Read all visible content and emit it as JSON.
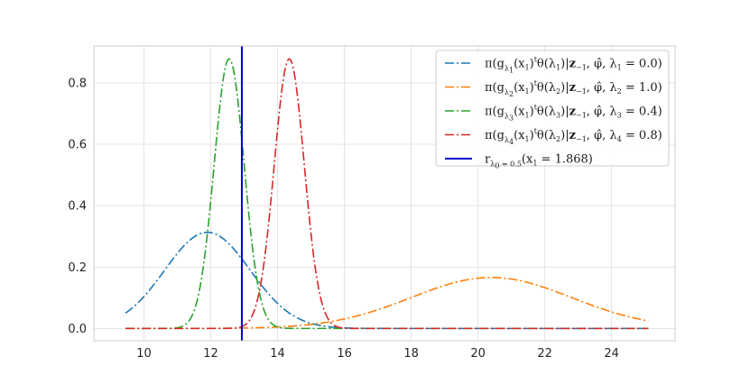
{
  "chart_data": {
    "type": "line",
    "title": "",
    "xlabel": "",
    "ylabel": "",
    "xlim": [
      8.5,
      25.9
    ],
    "ylim": [
      -0.04,
      0.92
    ],
    "x_ticks": [
      10,
      12,
      14,
      16,
      18,
      20,
      22,
      24
    ],
    "y_ticks": [
      0.0,
      0.2,
      0.4,
      0.6,
      0.8
    ],
    "x_tick_labels": [
      "10",
      "12",
      "14",
      "16",
      "18",
      "20",
      "22",
      "24"
    ],
    "y_tick_labels": [
      "0.0",
      "0.2",
      "0.4",
      "0.6",
      "0.8"
    ],
    "x_range": [
      9.45,
      25.1
    ],
    "grid": true,
    "legend_position": "top-right",
    "series": [
      {
        "name": "π(gλ1(x1)tθ(λ1)|z−1, φ̂, λ1 = 0.0)",
        "color": "#1f77b4",
        "style": "dashdot",
        "distribution": "normal",
        "mean": 11.9,
        "sd": 1.28,
        "peak": 0.313
      },
      {
        "name": "π(gλ2(x1)tθ(λ2)|z−1, φ̂, λ2 = 1.0)",
        "color": "#ff7f0e",
        "style": "dashdot",
        "distribution": "normal",
        "mean": 20.4,
        "sd": 2.4,
        "peak": 0.166
      },
      {
        "name": "π(gλ3(x1)tθ(λ3)|z−1, φ̂, λ3 = 0.4)",
        "color": "#2ca02c",
        "style": "dashdot",
        "distribution": "normal",
        "mean": 12.55,
        "sd": 0.45,
        "peak": 0.878
      },
      {
        "name": "π(gλ4(x1)tθ(λ2)|z−1, φ̂, λ4 = 0.8)",
        "color": "#d62728",
        "style": "dashdot",
        "distribution": "normal",
        "mean": 14.35,
        "sd": 0.45,
        "peak": 0.878
      },
      {
        "name": "rλ0 = 0.5(x1 = 1.868)",
        "color": "#0000cd",
        "style": "solid",
        "type": "vline",
        "x": 12.93
      }
    ],
    "legend_entries": [
      {
        "pre": "π(g",
        "sub": "λ",
        "subsub": "1",
        "mid1": "(x",
        "x_sub": "1",
        "mid2": ")",
        "sup": "t",
        "post1": "θ(λ",
        "post1_sub": "1",
        "post2": ")|",
        "bold": "z",
        "post3": "−1",
        "post4": ", ",
        "phi": "φ̂",
        "post5": ", λ",
        "lam_sub": "1",
        "post6": " = 0.0)"
      },
      {
        "pre": "π(g",
        "sub": "λ",
        "subsub": "2",
        "mid1": "(x",
        "x_sub": "1",
        "mid2": ")",
        "sup": "t",
        "post1": "θ(λ",
        "post1_sub": "2",
        "post2": ")|",
        "bold": "z",
        "post3": "−1",
        "post4": ", ",
        "phi": "φ̂",
        "post5": ", λ",
        "lam_sub": "2",
        "post6": " = 1.0)"
      },
      {
        "pre": "π(g",
        "sub": "λ",
        "subsub": "3",
        "mid1": "(x",
        "x_sub": "1",
        "mid2": ")",
        "sup": "t",
        "post1": "θ(λ",
        "post1_sub": "3",
        "post2": ")|",
        "bold": "z",
        "post3": "−1",
        "post4": ", ",
        "phi": "φ̂",
        "post5": ", λ",
        "lam_sub": "3",
        "post6": " = 0.4)"
      },
      {
        "pre": "π(g",
        "sub": "λ",
        "subsub": "4",
        "mid1": "(x",
        "x_sub": "1",
        "mid2": ")",
        "sup": "t",
        "post1": "θ(λ",
        "post1_sub": "2",
        "post2": ")|",
        "bold": "z",
        "post3": "−1",
        "post4": ", ",
        "phi": "φ̂",
        "post5": ", λ",
        "lam_sub": "4",
        "post6": " = 0.8)"
      }
    ],
    "vline_legend": {
      "r": "r",
      "sub": "λ",
      "subsub": "0",
      "subeq": " = 0.5",
      "body": "(x",
      "x_sub": "1",
      "tail": " = 1.868)"
    }
  }
}
